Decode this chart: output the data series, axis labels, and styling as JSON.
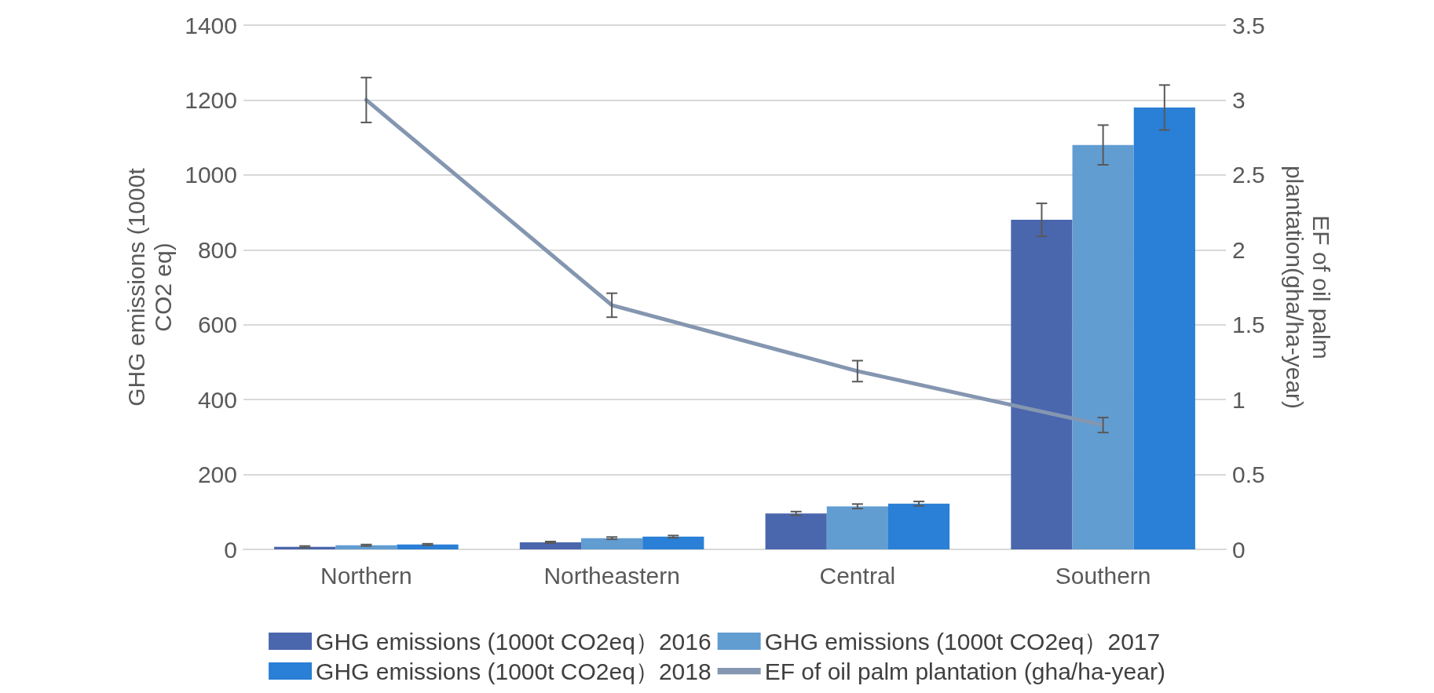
{
  "chart_data": {
    "type": "bar",
    "categories": [
      "Northern",
      "Northeastern",
      "Central",
      "Southern"
    ],
    "ylabel": "GHG emissions (1000t CO2 eq)",
    "y2label": "EF of oil palm plantation(gha/ha-year)",
    "ylim": [
      0,
      1400
    ],
    "yticks": [
      0,
      200,
      400,
      600,
      800,
      1000,
      1200,
      1400
    ],
    "y2lim": [
      0,
      3.5
    ],
    "y2ticks": [
      0,
      0.5,
      1,
      1.5,
      2,
      2.5,
      3,
      3.5
    ],
    "grid": "y",
    "legend": "bottom",
    "series": [
      {
        "name": "GHG emissions (1000t CO2eq）2016",
        "color": "#4a66ad",
        "values": [
          7,
          19,
          96,
          880
        ],
        "errors": [
          2,
          2,
          5,
          44
        ]
      },
      {
        "name": "GHG emissions (1000t CO2eq）2017",
        "color": "#629dd1",
        "values": [
          11,
          30,
          115,
          1080
        ],
        "errors": [
          2,
          3,
          6,
          53
        ]
      },
      {
        "name": "GHG emissions (1000t CO2eq）2018",
        "color": "#2a7fd6",
        "values": [
          13,
          34,
          122,
          1180
        ],
        "errors": [
          2,
          3,
          6,
          60
        ]
      },
      {
        "name": "EF of oil palm plantation (gha/ha-year)",
        "type": "line",
        "axis": "y2",
        "color": "#8496b0",
        "marker": "none",
        "values": [
          3.0,
          1.63,
          1.19,
          0.83
        ],
        "errors": [
          0.15,
          0.08,
          0.07,
          0.05
        ]
      }
    ]
  }
}
